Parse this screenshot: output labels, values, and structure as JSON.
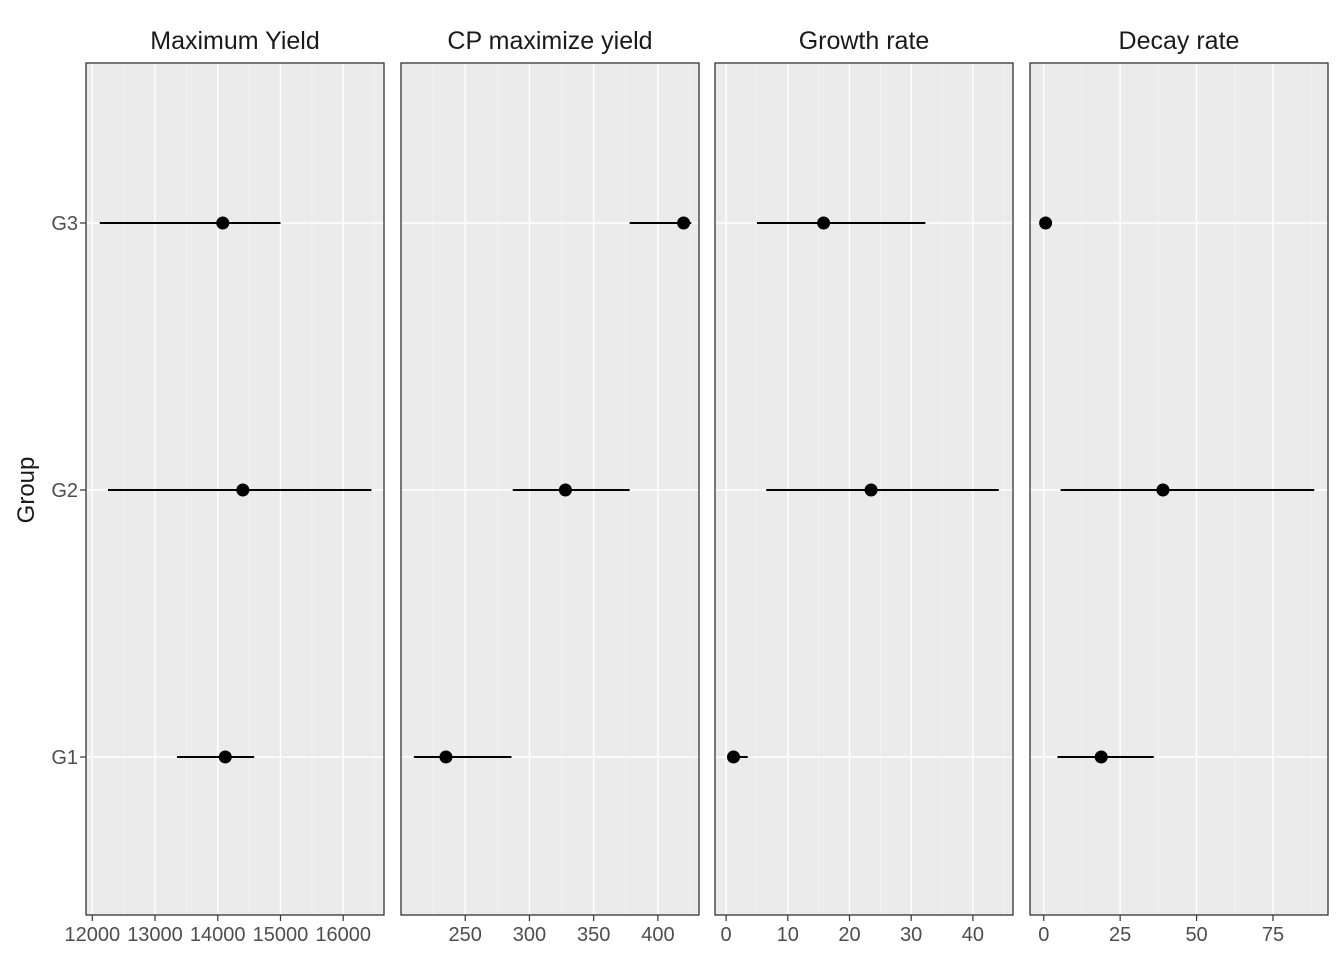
{
  "chart_data": {
    "type": "scatter",
    "ylabel": "Group",
    "groups": [
      "G1",
      "G2",
      "G3"
    ],
    "grid": true,
    "legend": "none",
    "panels": [
      {
        "title": "Maximum Yield",
        "xlim": [
          11900,
          16650
        ],
        "ticks": [
          12000,
          13000,
          14000,
          15000,
          16000
        ],
        "tick_labels": [
          "12000",
          "13000",
          "14000",
          "15000",
          "16000"
        ],
        "points": [
          {
            "group": "G1",
            "value": 14120,
            "lower": 13350,
            "upper": 14580
          },
          {
            "group": "G2",
            "value": 14400,
            "lower": 12250,
            "upper": 16450
          },
          {
            "group": "G3",
            "value": 14080,
            "lower": 12120,
            "upper": 15000
          }
        ]
      },
      {
        "title": "CP maximize yield",
        "xlim": [
          200,
          432
        ],
        "ticks": [
          250,
          300,
          350,
          400
        ],
        "tick_labels": [
          "250",
          "300",
          "350",
          "400"
        ],
        "points": [
          {
            "group": "G1",
            "value": 235,
            "lower": 210,
            "upper": 286
          },
          {
            "group": "G2",
            "value": 328,
            "lower": 287,
            "upper": 378
          },
          {
            "group": "G3",
            "value": 420,
            "lower": 378,
            "upper": 426
          }
        ]
      },
      {
        "title": "Growth rate",
        "xlim": [
          -1.8,
          46.5
        ],
        "ticks": [
          0,
          10,
          20,
          30,
          40
        ],
        "tick_labels": [
          "0",
          "10",
          "20",
          "30",
          "40"
        ],
        "points": [
          {
            "group": "G1",
            "value": 1.2,
            "lower": 0.5,
            "upper": 3.5
          },
          {
            "group": "G2",
            "value": 23.5,
            "lower": 6.5,
            "upper": 44.2
          },
          {
            "group": "G3",
            "value": 15.8,
            "lower": 5.0,
            "upper": 32.3
          }
        ]
      },
      {
        "title": "Decay rate",
        "xlim": [
          -4.5,
          93
        ],
        "ticks": [
          0,
          25,
          50,
          75
        ],
        "tick_labels": [
          "0",
          "25",
          "50",
          "75"
        ],
        "points": [
          {
            "group": "G1",
            "value": 18.8,
            "lower": 4.5,
            "upper": 36.0
          },
          {
            "group": "G2",
            "value": 39.0,
            "lower": 5.5,
            "upper": 88.5
          },
          {
            "group": "G3",
            "value": 0.6,
            "lower": -0.5,
            "upper": 2.5
          }
        ]
      }
    ]
  }
}
